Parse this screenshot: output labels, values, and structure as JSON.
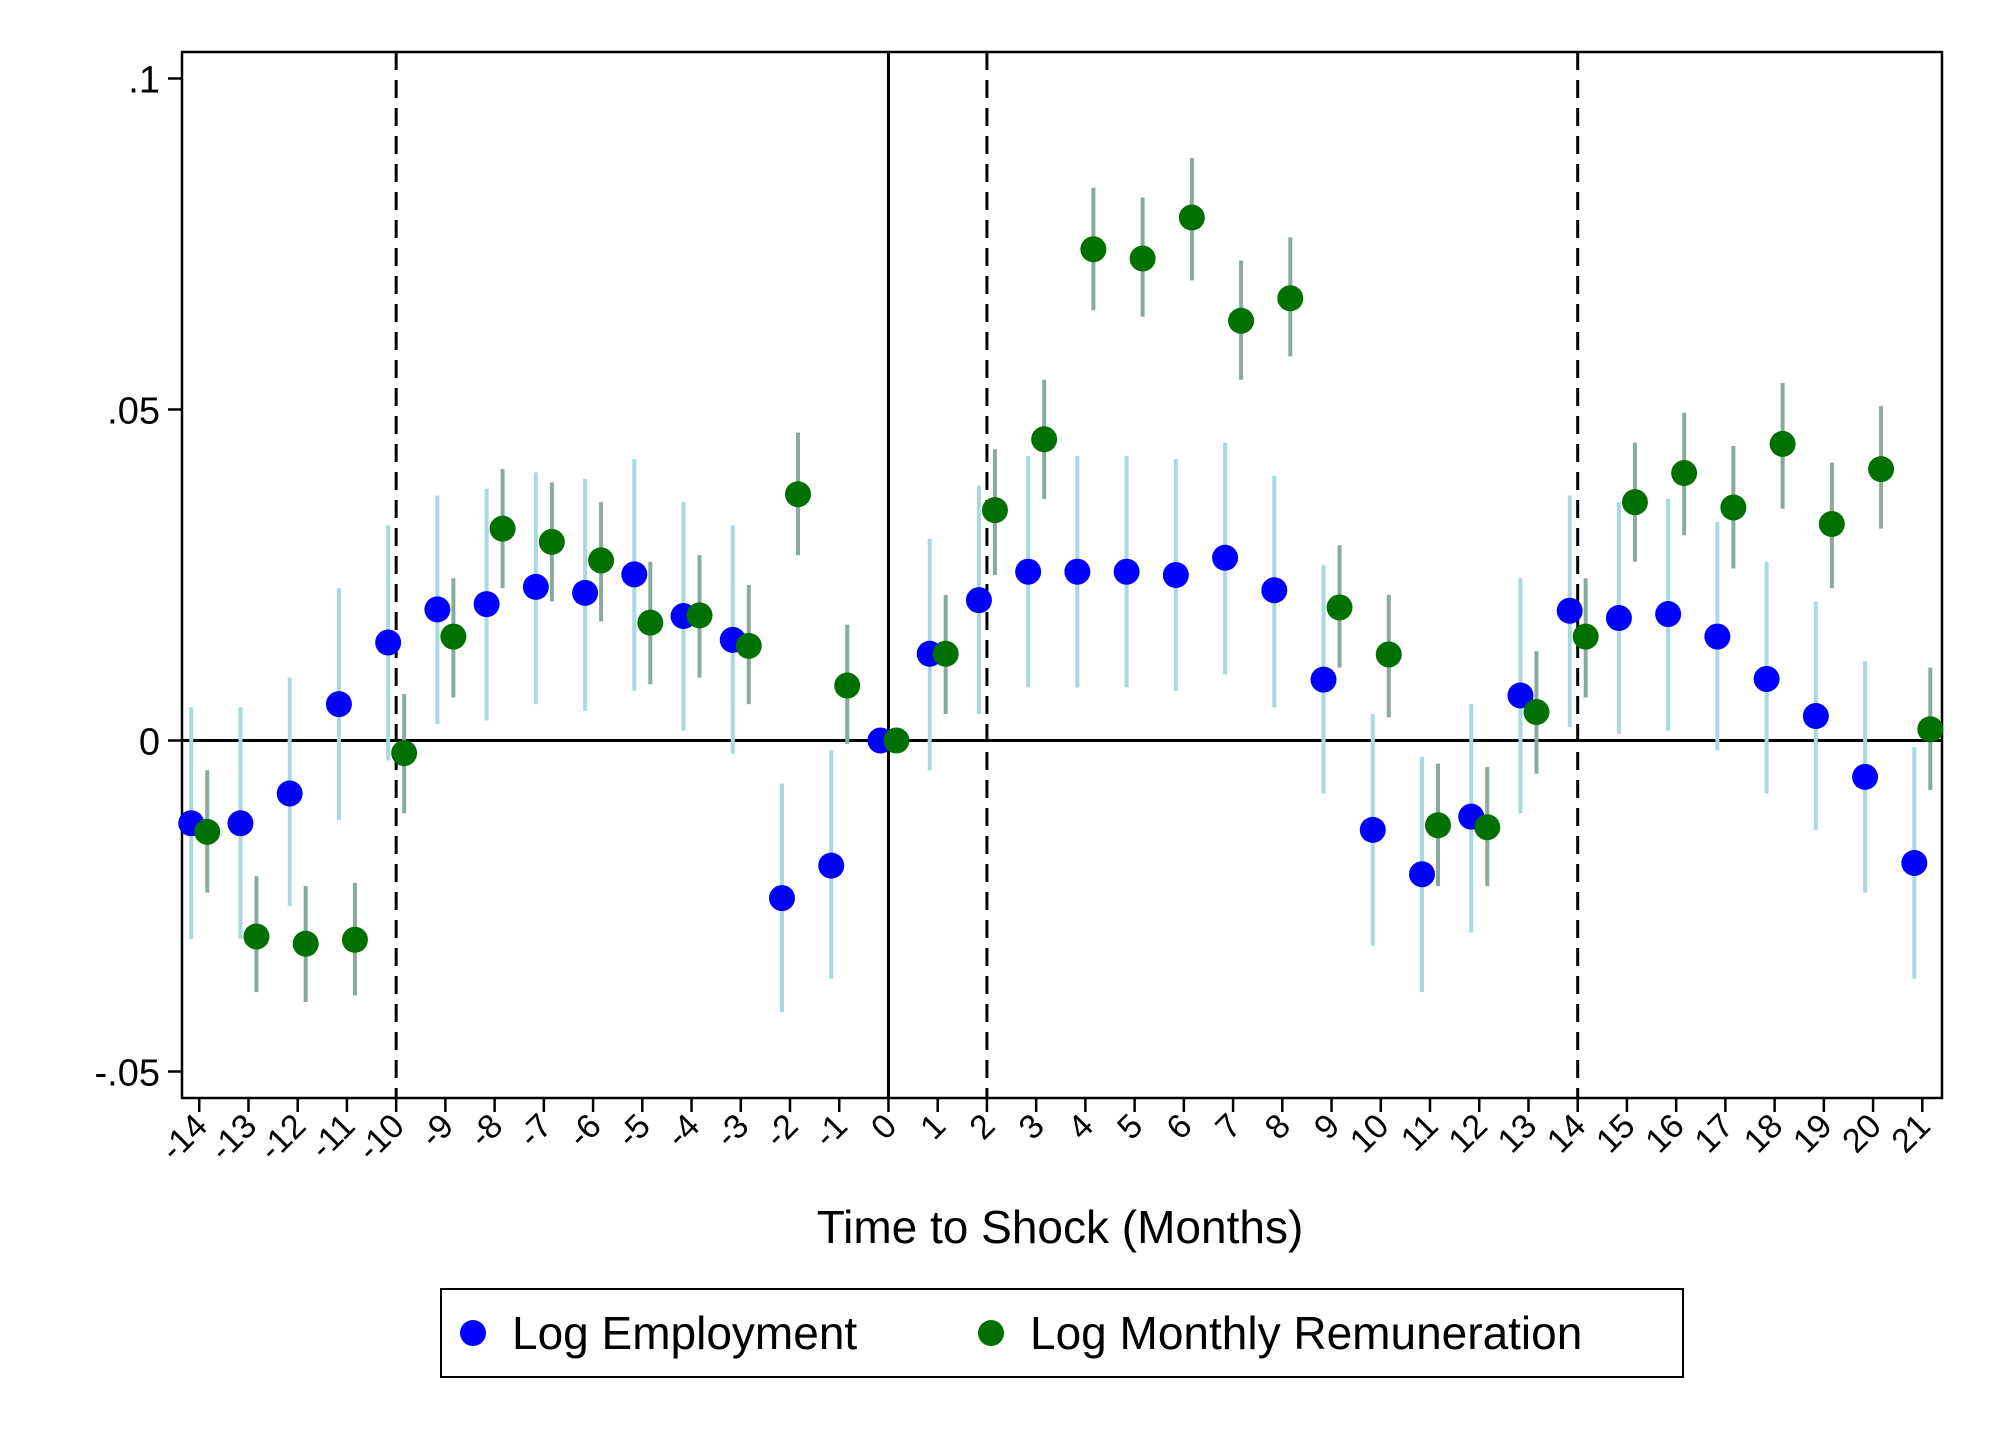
{
  "chart_data": {
    "type": "scatter",
    "xlabel": "Time to Shock (Months)",
    "ylabel": "",
    "ylim": [
      -0.054,
      0.104
    ],
    "y_ticks": [
      -0.05,
      0,
      0.05,
      0.1
    ],
    "y_tick_labels": [
      "-.05",
      "0",
      ".05",
      ".1"
    ],
    "x_ticks": [
      -14,
      -13,
      -12,
      -11,
      -10,
      -9,
      -8,
      -7,
      -6,
      -5,
      -4,
      -3,
      -2,
      -1,
      0,
      1,
      2,
      3,
      4,
      5,
      6,
      7,
      8,
      9,
      10,
      11,
      12,
      13,
      14,
      15,
      16,
      17,
      18,
      19,
      20,
      21
    ],
    "x_tick_labels": [
      "-14",
      "-13",
      "-12",
      "-11",
      "-10",
      "-9",
      "-8",
      "-7",
      "-6",
      "-5",
      "-4",
      "-3",
      "-2",
      "-1",
      "0",
      "1",
      "2",
      "3",
      "4",
      "5",
      "6",
      "7",
      "8",
      "9",
      "10",
      "11",
      "12",
      "13",
      "14",
      "15",
      "16",
      "17",
      "18",
      "19",
      "20",
      "21"
    ],
    "vlines_dashed": [
      -10,
      2,
      14
    ],
    "vline_solid": 0,
    "hline_solid": 0,
    "grid": false,
    "legend_position": "bottom",
    "series": [
      {
        "name": "Log Employment",
        "color": "#0000ff",
        "ci_color": "#a8d8e0",
        "x": [
          -14,
          -13,
          -12,
          -11,
          -10,
          -9,
          -8,
          -7,
          -6,
          -5,
          -4,
          -3,
          -2,
          -1,
          0,
          1,
          2,
          3,
          4,
          5,
          6,
          7,
          8,
          9,
          10,
          11,
          12,
          13,
          14,
          15,
          16,
          17,
          18,
          19,
          20,
          21
        ],
        "y": [
          -0.0125,
          -0.0125,
          -0.008,
          0.0055,
          0.0148,
          0.0198,
          0.0206,
          0.0232,
          0.0223,
          0.0251,
          0.0188,
          0.0152,
          -0.0238,
          -0.0189,
          0,
          0.0131,
          0.0212,
          0.0255,
          0.0255,
          0.0255,
          0.025,
          0.0276,
          0.0227,
          0.0092,
          -0.0135,
          -0.0202,
          -0.0115,
          0.0068,
          0.0196,
          0.0185,
          0.0191,
          0.0157,
          0.0093,
          0.0037,
          -0.0055,
          -0.0185
        ],
        "ci_low": [
          -0.03,
          -0.03,
          -0.025,
          -0.012,
          -0.003,
          0.0025,
          0.003,
          0.0055,
          0.0045,
          0.0075,
          0.0015,
          -0.002,
          -0.041,
          -0.036,
          0,
          -0.0045,
          0.004,
          0.008,
          0.008,
          0.008,
          0.0075,
          0.01,
          0.005,
          -0.008,
          -0.031,
          -0.038,
          -0.029,
          -0.011,
          0.002,
          0.001,
          0.0015,
          -0.0015,
          -0.008,
          -0.0135,
          -0.023,
          -0.036
        ],
        "ci_high": [
          0.005,
          0.005,
          0.0095,
          0.023,
          0.0325,
          0.037,
          0.038,
          0.0405,
          0.0395,
          0.0425,
          0.036,
          0.0325,
          -0.0065,
          -0.0015,
          0,
          0.0305,
          0.0385,
          0.043,
          0.043,
          0.043,
          0.0425,
          0.045,
          0.04,
          0.0265,
          0.004,
          -0.0025,
          0.0055,
          0.0245,
          0.037,
          0.036,
          0.0365,
          0.033,
          0.027,
          0.021,
          0.012,
          -0.001
        ]
      },
      {
        "name": "Log Monthly Remuneration",
        "color": "#007000",
        "ci_color": "#8aaa9e",
        "x": [
          -14,
          -13,
          -12,
          -11,
          -10,
          -9,
          -8,
          -7,
          -6,
          -5,
          -4,
          -3,
          -2,
          -1,
          0,
          1,
          2,
          3,
          4,
          5,
          6,
          7,
          8,
          9,
          10,
          11,
          12,
          13,
          14,
          15,
          16,
          17,
          18,
          19,
          20,
          21
        ],
        "y": [
          -0.0138,
          -0.0296,
          -0.0307,
          -0.0301,
          -0.0019,
          0.0157,
          0.032,
          0.03,
          0.0272,
          0.0178,
          0.0189,
          0.0143,
          0.0372,
          0.0083,
          0,
          0.0131,
          0.0348,
          0.0455,
          0.0742,
          0.0728,
          0.079,
          0.0634,
          0.0668,
          0.0201,
          0.013,
          -0.0128,
          -0.0131,
          0.0043,
          0.0157,
          0.036,
          0.0404,
          0.0352,
          0.0448,
          0.0327,
          0.041,
          0.0017
        ],
        "ci_low": [
          -0.023,
          -0.038,
          -0.0395,
          -0.0385,
          -0.011,
          0.0065,
          0.023,
          0.021,
          0.018,
          0.0085,
          0.0095,
          0.0055,
          0.028,
          -0.0005,
          0,
          0.004,
          0.025,
          0.0365,
          0.065,
          0.064,
          0.0695,
          0.0545,
          0.058,
          0.011,
          0.0035,
          -0.022,
          -0.022,
          -0.005,
          0.0065,
          0.027,
          0.031,
          0.026,
          0.035,
          0.023,
          0.032,
          -0.0075
        ],
        "ci_high": [
          -0.0045,
          -0.0205,
          -0.022,
          -0.0215,
          0.007,
          0.0245,
          0.041,
          0.039,
          0.036,
          0.027,
          0.028,
          0.0235,
          0.0465,
          0.0175,
          0,
          0.022,
          0.044,
          0.0545,
          0.0835,
          0.082,
          0.088,
          0.0725,
          0.076,
          0.0295,
          0.022,
          -0.0035,
          -0.004,
          0.0135,
          0.0245,
          0.045,
          0.0495,
          0.0445,
          0.054,
          0.042,
          0.0505,
          0.011
        ]
      }
    ]
  }
}
